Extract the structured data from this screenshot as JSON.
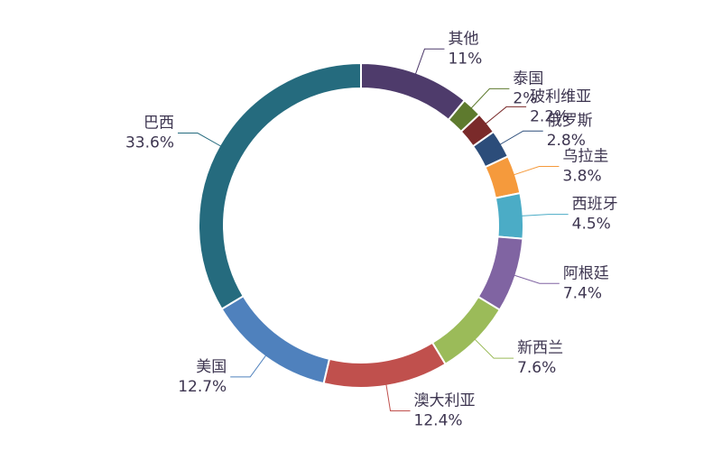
{
  "chart_data": {
    "type": "donut",
    "categories": [
      "其他",
      "泰国",
      "玻利维亚",
      "俄罗斯",
      "乌拉圭",
      "西班牙",
      "阿根廷",
      "新西兰",
      "澳大利亚",
      "美国",
      "巴西"
    ],
    "values": [
      11,
      2,
      2.2,
      2.8,
      3.8,
      4.5,
      7.4,
      7.6,
      12.4,
      12.7,
      33.6
    ],
    "value_labels": [
      "11%",
      "2%",
      "2.2%",
      "2.8%",
      "3.8%",
      "4.5%",
      "7.4%",
      "7.6%",
      "12.4%",
      "12.7%",
      "33.6%"
    ],
    "colors": [
      "#4e3b6b",
      "#5e7a2e",
      "#7a2a2a",
      "#2c4d7a",
      "#f59a3c",
      "#4bacc6",
      "#8064a2",
      "#9bbb59",
      "#c0504d",
      "#4f81bd",
      "#256b7e"
    ]
  }
}
